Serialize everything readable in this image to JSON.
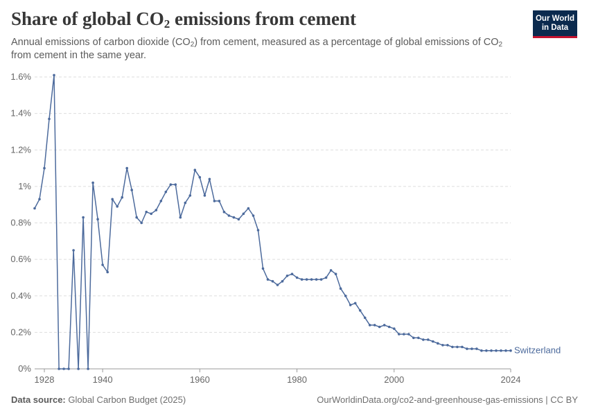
{
  "title_main": "Share of global CO",
  "title_sub": "2",
  "title_rest": " emissions from cement",
  "subtitle_part1": "Annual emissions of carbon dioxide (CO",
  "subtitle_sub1": "2",
  "subtitle_part2": ") from cement, measured as a percentage of global emissions of CO",
  "subtitle_sub2": "2",
  "subtitle_part3": " from cement in the same year.",
  "logo": {
    "line1": "Our World",
    "line2": "in Data"
  },
  "footer": {
    "source_label": "Data source:",
    "source_value": " Global Carbon Budget (2025)",
    "right": "OurWorldinData.org/co2-and-greenhouse-gas-emissions | CC BY"
  },
  "colors": {
    "series": "#4c6a9c",
    "grid": "#dddddd",
    "axis_text": "#666666",
    "text": "#373737",
    "logo_bg": "#0b2a4e",
    "logo_accent": "#c4122f"
  },
  "chart_data": {
    "type": "line",
    "x_ticks": [
      "1928",
      "1940",
      "1960",
      "1980",
      "2000",
      "2024"
    ],
    "y_ticks": [
      "0%",
      "0.2%",
      "0.4%",
      "0.6%",
      "0.8%",
      "1%",
      "1.2%",
      "1.4%",
      "1.6%"
    ],
    "xlim": [
      1926,
      2024
    ],
    "ylim": [
      0,
      1.6
    ],
    "grid": "horizontal dashed",
    "series": [
      {
        "name": "Switzerland",
        "x": [
          1926,
          1927,
          1928,
          1929,
          1930,
          1931,
          1932,
          1933,
          1934,
          1935,
          1936,
          1937,
          1938,
          1939,
          1940,
          1941,
          1942,
          1943,
          1944,
          1945,
          1946,
          1947,
          1948,
          1949,
          1950,
          1951,
          1952,
          1953,
          1954,
          1955,
          1956,
          1957,
          1958,
          1959,
          1960,
          1961,
          1962,
          1963,
          1964,
          1965,
          1966,
          1967,
          1968,
          1969,
          1970,
          1971,
          1972,
          1973,
          1974,
          1975,
          1976,
          1977,
          1978,
          1979,
          1980,
          1981,
          1982,
          1983,
          1984,
          1985,
          1986,
          1987,
          1988,
          1989,
          1990,
          1991,
          1992,
          1993,
          1994,
          1995,
          1996,
          1997,
          1998,
          1999,
          2000,
          2001,
          2002,
          2003,
          2004,
          2005,
          2006,
          2007,
          2008,
          2009,
          2010,
          2011,
          2012,
          2013,
          2014,
          2015,
          2016,
          2017,
          2018,
          2019,
          2020,
          2021,
          2022,
          2023,
          2024
        ],
        "values": [
          0.88,
          0.93,
          1.1,
          1.37,
          1.61,
          0,
          0,
          0,
          0.65,
          0,
          0.83,
          0,
          1.02,
          0.82,
          0.57,
          0.53,
          0.93,
          0.89,
          0.94,
          1.1,
          0.98,
          0.83,
          0.8,
          0.86,
          0.85,
          0.87,
          0.92,
          0.97,
          1.01,
          1.01,
          0.83,
          0.91,
          0.95,
          1.09,
          1.05,
          0.95,
          1.04,
          0.92,
          0.92,
          0.86,
          0.84,
          0.83,
          0.82,
          0.85,
          0.88,
          0.84,
          0.76,
          0.55,
          0.49,
          0.48,
          0.46,
          0.48,
          0.51,
          0.52,
          0.5,
          0.49,
          0.49,
          0.49,
          0.49,
          0.49,
          0.5,
          0.54,
          0.52,
          0.44,
          0.4,
          0.35,
          0.36,
          0.32,
          0.28,
          0.24,
          0.24,
          0.23,
          0.24,
          0.23,
          0.22,
          0.19,
          0.19,
          0.19,
          0.17,
          0.17,
          0.16,
          0.16,
          0.15,
          0.14,
          0.13,
          0.13,
          0.12,
          0.12,
          0.12,
          0.11,
          0.11,
          0.11,
          0.1,
          0.1,
          0.1,
          0.1,
          0.1,
          0.1,
          0.1
        ]
      }
    ]
  }
}
